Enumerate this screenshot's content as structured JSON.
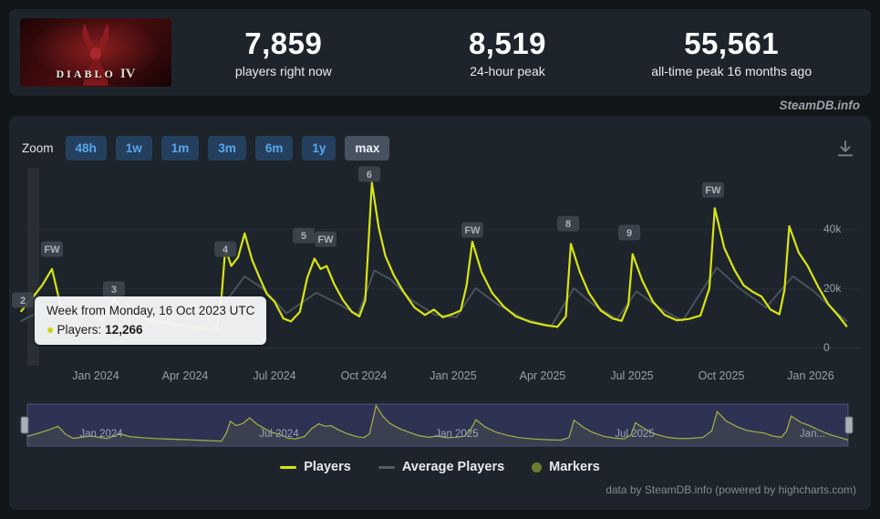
{
  "header": {
    "game_title_main": "DIABLO",
    "game_title_numeral": "IV",
    "stats": [
      {
        "value": "7,859",
        "label": "players right now"
      },
      {
        "value": "8,519",
        "label": "24-hour peak"
      },
      {
        "value": "55,561",
        "label": "all-time peak 16 months ago"
      }
    ]
  },
  "watermark": "SteamDB.info",
  "toolbar": {
    "zoom_label": "Zoom",
    "buttons": [
      "48h",
      "1w",
      "1m",
      "3m",
      "6m",
      "1y",
      "max"
    ],
    "selected": "max"
  },
  "tooltip": {
    "title": "Week from Monday, 16 Oct 2023 UTC",
    "bullet": "●",
    "series_label": "Players:",
    "value": "12,266"
  },
  "legend": [
    {
      "label": "Players",
      "swatch": "line",
      "color": "#d8e511"
    },
    {
      "label": "Average Players",
      "swatch": "line",
      "color": "#565f66"
    },
    {
      "label": "Markers",
      "swatch": "circle",
      "color": "#6d7e2f"
    }
  ],
  "credits": "data by SteamDB.info (powered by highcharts.com)",
  "colors": {
    "page_bg": "#131619",
    "panel_bg": "#1e242b",
    "players_line": "#d8e511",
    "average_line": "#49525a",
    "navigator_mask": "rgba(96,101,186,0.32)",
    "button_bg": "#24405e",
    "button_text": "#57a7ef",
    "button_selected_bg": "#46525f"
  },
  "chart_data": {
    "type": "line",
    "title": "",
    "x_unit": "months since Jan 2024",
    "x_range": [
      -2.5,
      25.2
    ],
    "ylim": [
      0,
      60000
    ],
    "grid": true,
    "legend_position": "bottom-center",
    "xlabels": [
      {
        "t": 0,
        "label": "Jan 2024"
      },
      {
        "t": 3,
        "label": "Apr 2024"
      },
      {
        "t": 6,
        "label": "Jul 2024"
      },
      {
        "t": 9,
        "label": "Oct 2024"
      },
      {
        "t": 12,
        "label": "Jan 2025"
      },
      {
        "t": 15,
        "label": "Apr 2025"
      },
      {
        "t": 18,
        "label": "Jul 2025"
      },
      {
        "t": 21,
        "label": "Oct 2025"
      },
      {
        "t": 24,
        "label": "Jan 2026"
      }
    ],
    "ylabels": [
      {
        "value": 40000,
        "label": "40k"
      },
      {
        "value": 20000,
        "label": "20k"
      },
      {
        "value": 0,
        "label": "0"
      }
    ],
    "series": [
      {
        "name": "Players",
        "color": "#d8e511",
        "width": 2.2,
        "points": [
          [
            -2.5,
            12266
          ],
          [
            -2.15,
            16500
          ],
          [
            -1.8,
            21000
          ],
          [
            -1.47,
            26500
          ],
          [
            -1.2,
            15000
          ],
          [
            -0.95,
            9500
          ],
          [
            -0.6,
            11500
          ],
          [
            -0.35,
            13000
          ],
          [
            -0.1,
            11000
          ],
          [
            0.2,
            9200
          ],
          [
            0.61,
            16200
          ],
          [
            0.95,
            12000
          ],
          [
            1.35,
            10500
          ],
          [
            1.85,
            9200
          ],
          [
            2.4,
            8300
          ],
          [
            3.0,
            7400
          ],
          [
            3.6,
            6400
          ],
          [
            4.05,
            5700
          ],
          [
            4.22,
            17000
          ],
          [
            4.35,
            33500
          ],
          [
            4.55,
            27500
          ],
          [
            4.78,
            30500
          ],
          [
            5.0,
            38500
          ],
          [
            5.25,
            29500
          ],
          [
            5.5,
            23500
          ],
          [
            5.75,
            18000
          ],
          [
            6.0,
            15500
          ],
          [
            6.3,
            9800
          ],
          [
            6.55,
            8800
          ],
          [
            6.85,
            12000
          ],
          [
            7.1,
            23500
          ],
          [
            7.34,
            30000
          ],
          [
            7.55,
            26500
          ],
          [
            7.75,
            27500
          ],
          [
            8.0,
            21500
          ],
          [
            8.3,
            16000
          ],
          [
            8.6,
            12000
          ],
          [
            8.85,
            10500
          ],
          [
            9.05,
            16000
          ],
          [
            9.27,
            55561
          ],
          [
            9.5,
            40500
          ],
          [
            9.72,
            31000
          ],
          [
            10.0,
            24500
          ],
          [
            10.35,
            18500
          ],
          [
            10.7,
            13500
          ],
          [
            11.05,
            11000
          ],
          [
            11.35,
            12800
          ],
          [
            11.65,
            10200
          ],
          [
            11.95,
            11200
          ],
          [
            12.25,
            12500
          ],
          [
            12.45,
            21000
          ],
          [
            12.64,
            35700
          ],
          [
            12.95,
            25500
          ],
          [
            13.3,
            18500
          ],
          [
            13.7,
            13800
          ],
          [
            14.1,
            10500
          ],
          [
            14.6,
            8600
          ],
          [
            15.1,
            7500
          ],
          [
            15.5,
            7000
          ],
          [
            15.78,
            10500
          ],
          [
            15.95,
            35000
          ],
          [
            16.25,
            25500
          ],
          [
            16.55,
            18500
          ],
          [
            16.95,
            12500
          ],
          [
            17.35,
            9800
          ],
          [
            17.65,
            9000
          ],
          [
            17.88,
            14500
          ],
          [
            18.02,
            31500
          ],
          [
            18.35,
            22500
          ],
          [
            18.7,
            15500
          ],
          [
            19.1,
            11000
          ],
          [
            19.5,
            9200
          ],
          [
            19.9,
            9600
          ],
          [
            20.3,
            10800
          ],
          [
            20.6,
            20000
          ],
          [
            20.78,
            47000
          ],
          [
            21.1,
            33500
          ],
          [
            21.45,
            26000
          ],
          [
            21.75,
            21000
          ],
          [
            22.05,
            18800
          ],
          [
            22.35,
            17200
          ],
          [
            22.65,
            12800
          ],
          [
            22.95,
            11200
          ],
          [
            23.12,
            19500
          ],
          [
            23.28,
            40900
          ],
          [
            23.6,
            32000
          ],
          [
            23.9,
            27500
          ],
          [
            24.25,
            20500
          ],
          [
            24.6,
            14500
          ],
          [
            24.95,
            10500
          ],
          [
            25.2,
            7200
          ]
        ]
      },
      {
        "name": "Average Players",
        "color": "#49525a",
        "width": 2,
        "points": [
          [
            -2.5,
            9000
          ],
          [
            -1.6,
            13500
          ],
          [
            -0.8,
            11500
          ],
          [
            0,
            9800
          ],
          [
            0.7,
            11000
          ],
          [
            1.6,
            9200
          ],
          [
            2.6,
            7600
          ],
          [
            3.6,
            6200
          ],
          [
            4.4,
            16000
          ],
          [
            5.0,
            24000
          ],
          [
            5.6,
            20000
          ],
          [
            6.4,
            11500
          ],
          [
            7.4,
            18500
          ],
          [
            8.1,
            15000
          ],
          [
            8.8,
            11000
          ],
          [
            9.35,
            26000
          ],
          [
            9.9,
            23000
          ],
          [
            10.6,
            16000
          ],
          [
            11.4,
            11000
          ],
          [
            12.1,
            10200
          ],
          [
            12.75,
            20000
          ],
          [
            13.5,
            14500
          ],
          [
            14.4,
            9500
          ],
          [
            15.3,
            7300
          ],
          [
            16.05,
            20000
          ],
          [
            16.7,
            14500
          ],
          [
            17.5,
            9600
          ],
          [
            18.15,
            19000
          ],
          [
            18.9,
            13500
          ],
          [
            19.7,
            9000
          ],
          [
            20.85,
            27000
          ],
          [
            21.6,
            20000
          ],
          [
            22.5,
            13500
          ],
          [
            23.4,
            24000
          ],
          [
            24.1,
            19000
          ],
          [
            24.9,
            11500
          ],
          [
            25.2,
            9000
          ]
        ]
      }
    ],
    "markers": [
      {
        "label": "2",
        "t": -2.45,
        "v": 16000
      },
      {
        "label": "FW",
        "t": -1.47,
        "v": 33200
      },
      {
        "label": "3",
        "t": 0.61,
        "v": 19700
      },
      {
        "label": "4",
        "t": 4.35,
        "v": 33200
      },
      {
        "label": "5",
        "t": 6.98,
        "v": 37800
      },
      {
        "label": "FW",
        "t": 7.71,
        "v": 36600
      },
      {
        "label": "6",
        "t": 9.18,
        "v": 58500
      },
      {
        "label": "FW",
        "t": 12.64,
        "v": 39700
      },
      {
        "label": "8",
        "t": 15.86,
        "v": 41800
      },
      {
        "label": "9",
        "t": 17.91,
        "v": 38800
      },
      {
        "label": "FW",
        "t": 20.72,
        "v": 53200
      }
    ],
    "navigator": {
      "labels": [
        {
          "t": 0,
          "label": "Jan 2024"
        },
        {
          "t": 6,
          "label": "Jul 2024"
        },
        {
          "t": 12,
          "label": "Jan 2025"
        },
        {
          "t": 18,
          "label": "Jul 2025"
        },
        {
          "t": 24,
          "label": "Jan..."
        }
      ]
    }
  }
}
